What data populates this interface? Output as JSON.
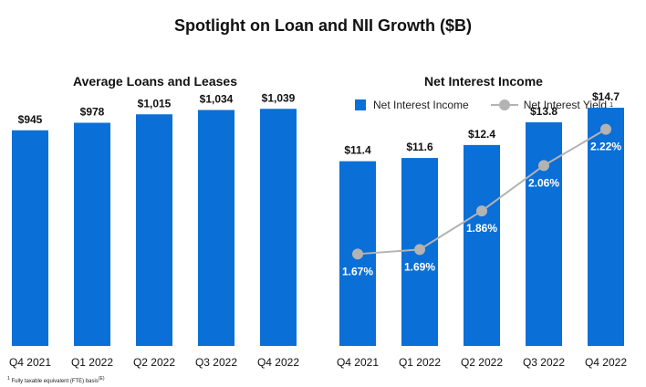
{
  "title": "Spotlight on Loan and NII Growth ($B)",
  "footnote": {
    "marker": "1",
    "text": "Fully taxable equivalent (FTE) basis",
    "ref": "(E)"
  },
  "colors": {
    "bar": "#0a6fd6",
    "line": "#b3b3b3",
    "text": "#111111",
    "pct_label": "#ffffff"
  },
  "chart_data": [
    {
      "type": "bar",
      "title": "Average Loans and Leases",
      "categories": [
        "Q4 2021",
        "Q1 2022",
        "Q2 2022",
        "Q3 2022",
        "Q4 2022"
      ],
      "values": [
        945,
        978,
        1015,
        1034,
        1039
      ],
      "value_labels": [
        "$945",
        "$978",
        "$1,015",
        "$1,034",
        "$1,039"
      ],
      "ylim": [
        0,
        1200
      ]
    },
    {
      "type": "bar+line",
      "title": "Net Interest Income",
      "categories": [
        "Q4 2021",
        "Q1 2022",
        "Q2 2022",
        "Q3 2022",
        "Q4 2022"
      ],
      "series": [
        {
          "name": "Net Interest Income",
          "type": "bar",
          "values": [
            11.4,
            11.6,
            12.4,
            13.8,
            14.7
          ],
          "labels": [
            "$11.4",
            "$11.6",
            "$12.4",
            "$13.8",
            "$14.7"
          ]
        },
        {
          "name": "Net Interest Yield",
          "superscript": "1",
          "type": "line",
          "values": [
            1.67,
            1.69,
            1.86,
            2.06,
            2.22
          ],
          "labels": [
            "1.67%",
            "1.69%",
            "1.86%",
            "2.06%",
            "2.22%"
          ]
        }
      ],
      "ylim": [
        0,
        16.9
      ],
      "yield_range": [
        1.1,
        2.5
      ]
    }
  ]
}
